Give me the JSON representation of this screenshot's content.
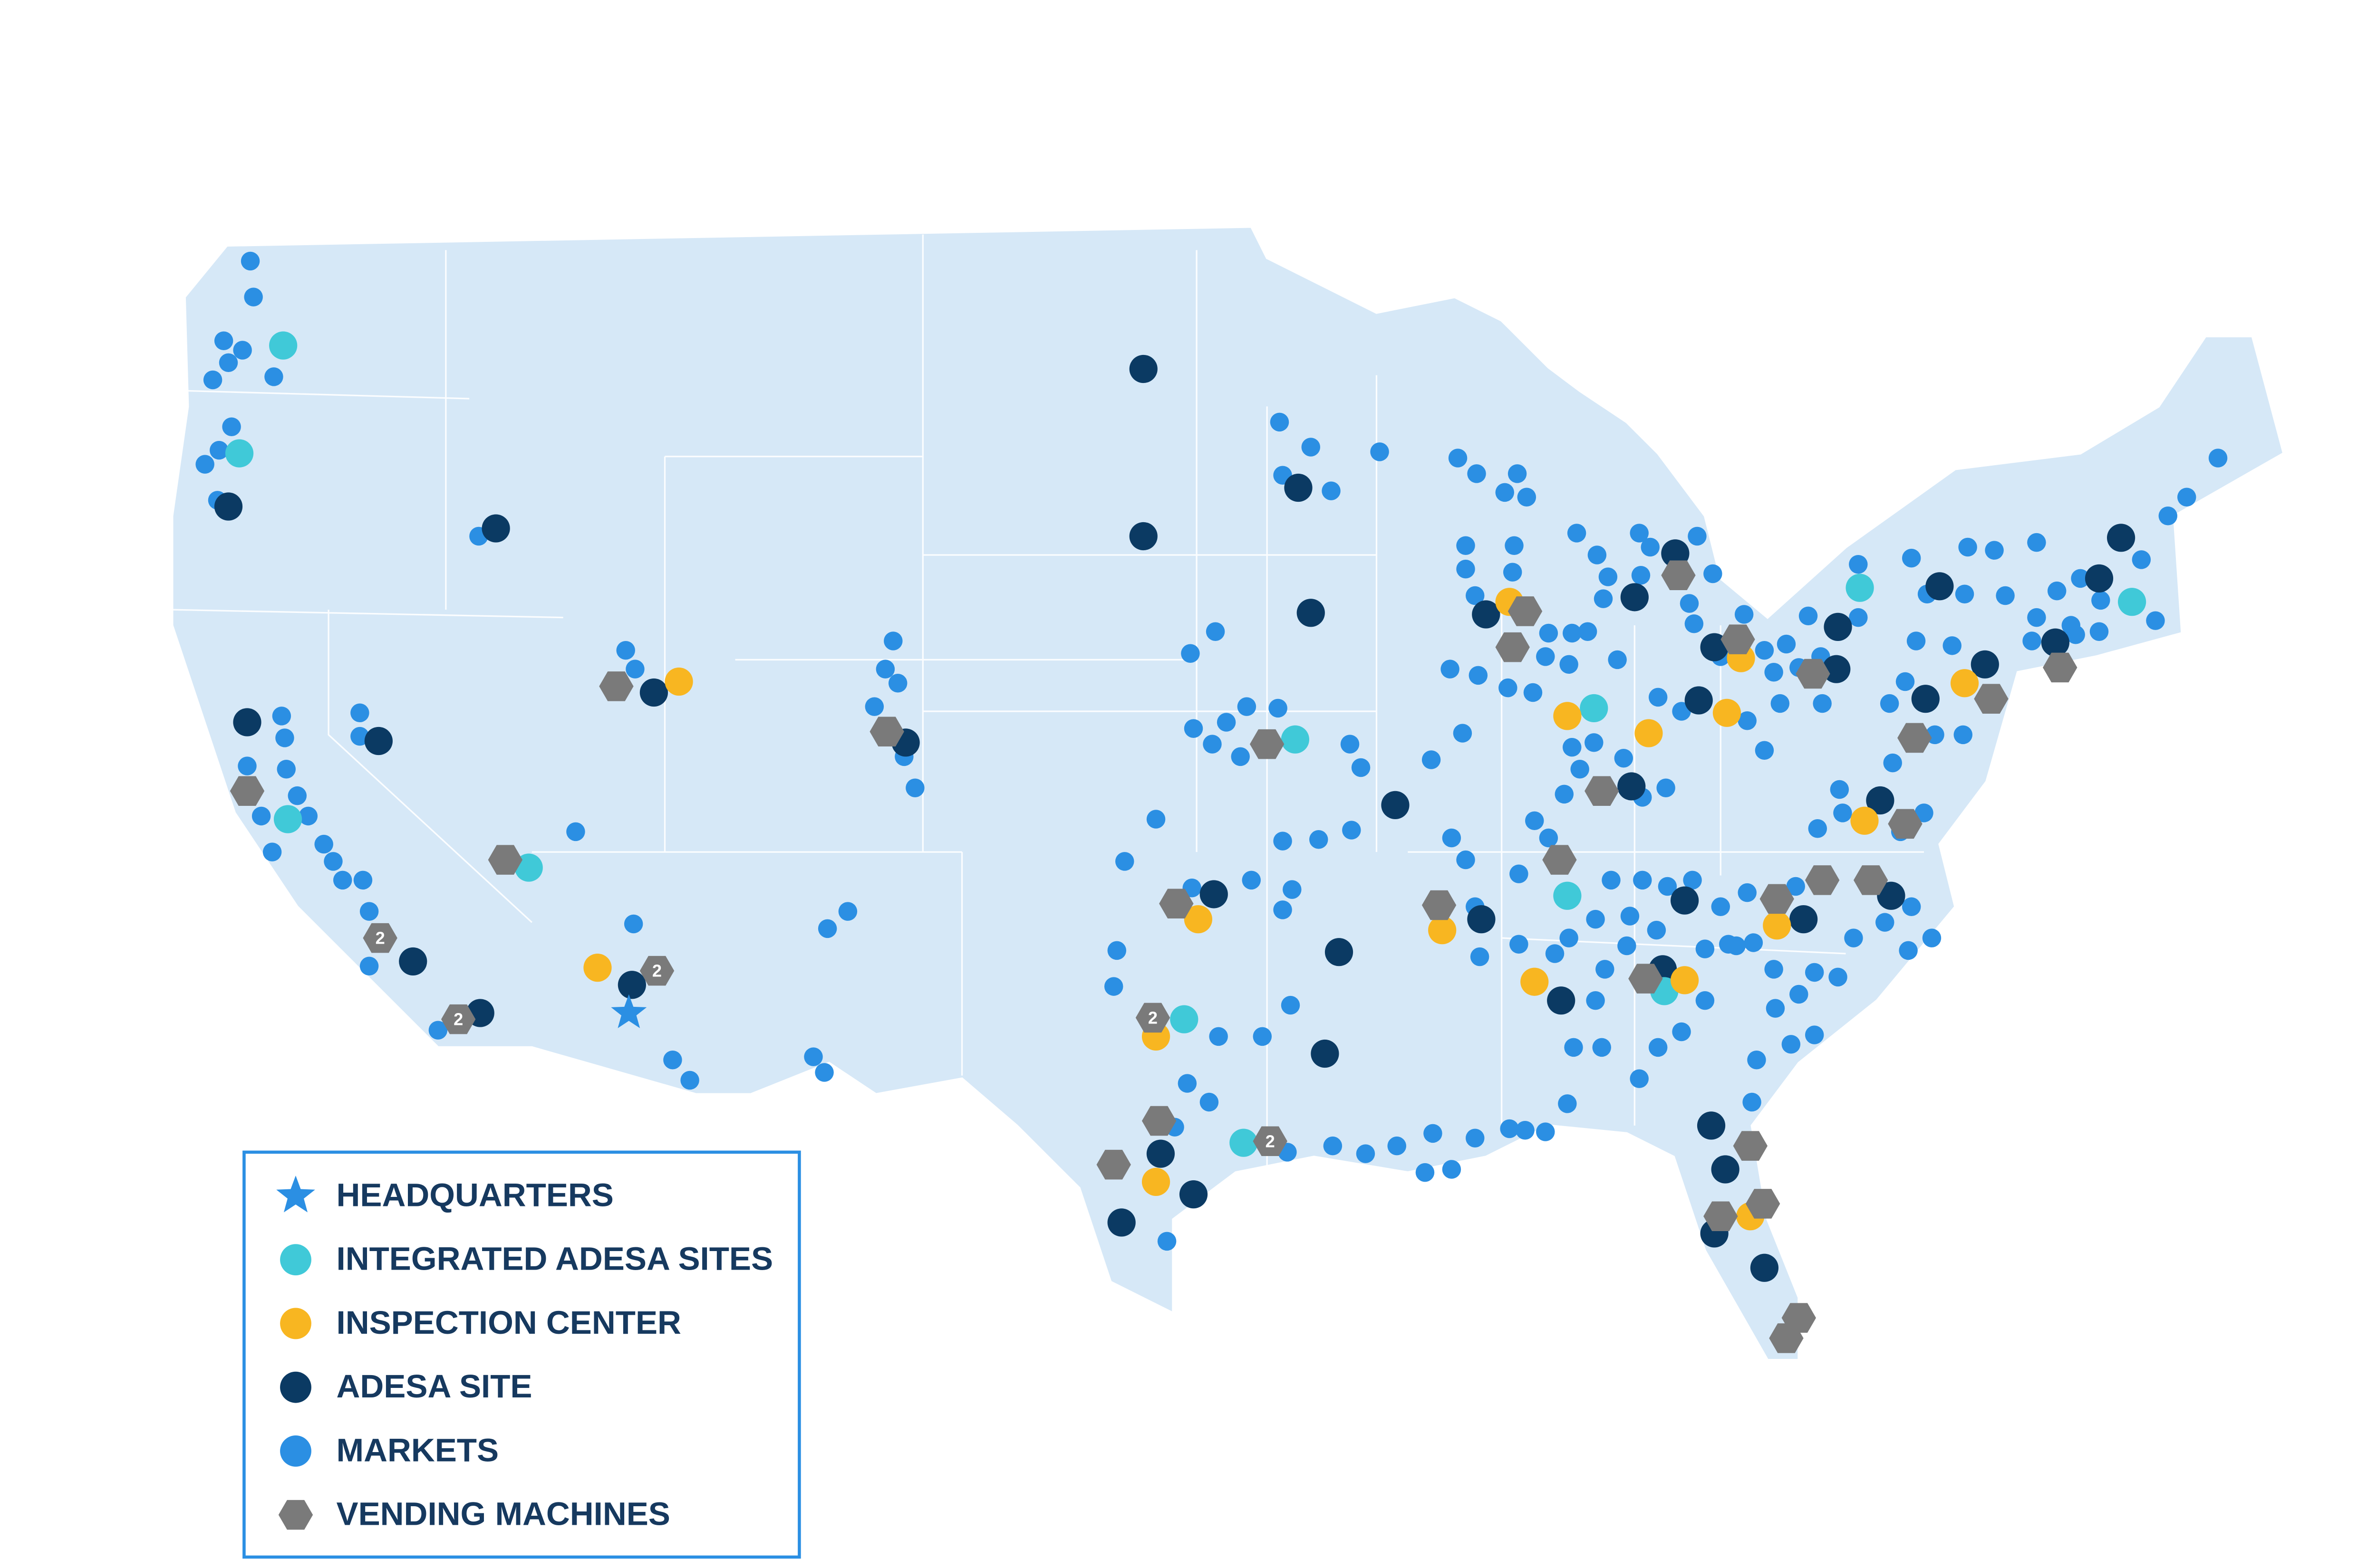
{
  "legend": {
    "items": [
      "HEADQUARTERS",
      "INTEGRATED ADESA SITES",
      "INSPECTION CENTER",
      "ADESA SITE",
      "MARKETS",
      "VENDING MACHINES"
    ]
  },
  "map": {
    "vending_labels": [
      "2",
      "2",
      "2",
      "2",
      "2"
    ]
  }
}
